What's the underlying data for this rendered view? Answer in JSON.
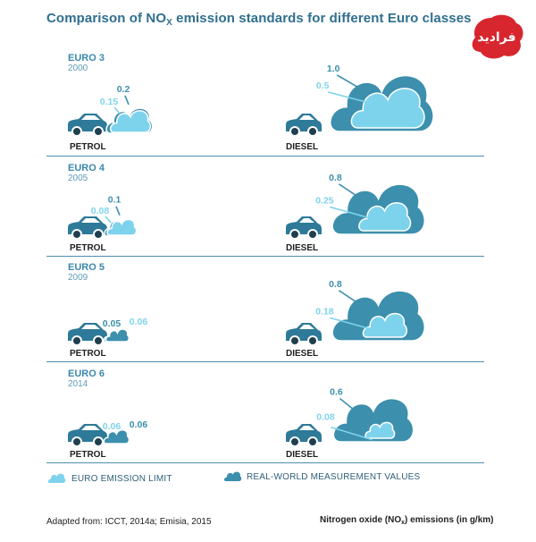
{
  "title": {
    "prefix": "Comparison of NO",
    "sub": "X",
    "suffix": " emission standards for different Euro classes"
  },
  "logo_text": "فرادید",
  "colors": {
    "limit": "#7ed3ec",
    "real": "#3c8fad",
    "heading": "#2f6f8f",
    "car": "#2e7a98"
  },
  "vehicles": {
    "petrol": "PETROL",
    "diesel": "DIESEL"
  },
  "legend": {
    "limit": "EURO EMISSION LIMIT",
    "real": "REAL-WORLD MEASUREMENT VALUES"
  },
  "footer": {
    "source": "Adapted from: ICCT, 2014a; Emisia, 2015",
    "units_prefix": "Nitrogen oxide (NO",
    "units_sub": "x",
    "units_suffix": ") emissions (in g/km)"
  },
  "chart_data": {
    "type": "bar",
    "title": "Comparison of NOx emission standards for different Euro classes",
    "ylabel": "Nitrogen oxide (NOx) emissions (in g/km)",
    "categories": [
      "EURO 3",
      "EURO 4",
      "EURO 5",
      "EURO 6"
    ],
    "years": [
      "2000",
      "2005",
      "2009",
      "2014"
    ],
    "panels": [
      {
        "label": "EURO 3",
        "year": "2000",
        "petrol": {
          "limit": 0.15,
          "real": 0.2
        },
        "diesel": {
          "limit": 0.5,
          "real": 1.0
        }
      },
      {
        "label": "EURO 4",
        "year": "2005",
        "petrol": {
          "limit": 0.08,
          "real": 0.1
        },
        "diesel": {
          "limit": 0.25,
          "real": 0.8
        }
      },
      {
        "label": "EURO 5",
        "year": "2009",
        "petrol": {
          "limit": 0.06,
          "real": 0.05
        },
        "diesel": {
          "limit": 0.18,
          "real": 0.8
        }
      },
      {
        "label": "EURO 6",
        "year": "2014",
        "petrol": {
          "limit": 0.06,
          "real": 0.06
        },
        "diesel": {
          "limit": 0.08,
          "real": 0.6
        }
      }
    ],
    "labels": {
      "EURO 3": {
        "petrol_limit": "0.15",
        "petrol_real": "0.2",
        "diesel_limit": "0.5",
        "diesel_real": "1.0"
      },
      "EURO 4": {
        "petrol_limit": "0.08",
        "petrol_real": "0.1",
        "diesel_limit": "0.25",
        "diesel_real": "0.8"
      },
      "EURO 5": {
        "petrol_limit": "0.06",
        "petrol_real": "0.05",
        "diesel_limit": "0.18",
        "diesel_real": "0.8"
      },
      "EURO 6": {
        "petrol_limit": "0.06",
        "petrol_real": "0.06",
        "diesel_limit": "0.08",
        "diesel_real": "0.6"
      }
    },
    "series": [
      {
        "name": "EURO EMISSION LIMIT"
      },
      {
        "name": "REAL-WORLD MEASUREMENT VALUES"
      }
    ]
  }
}
